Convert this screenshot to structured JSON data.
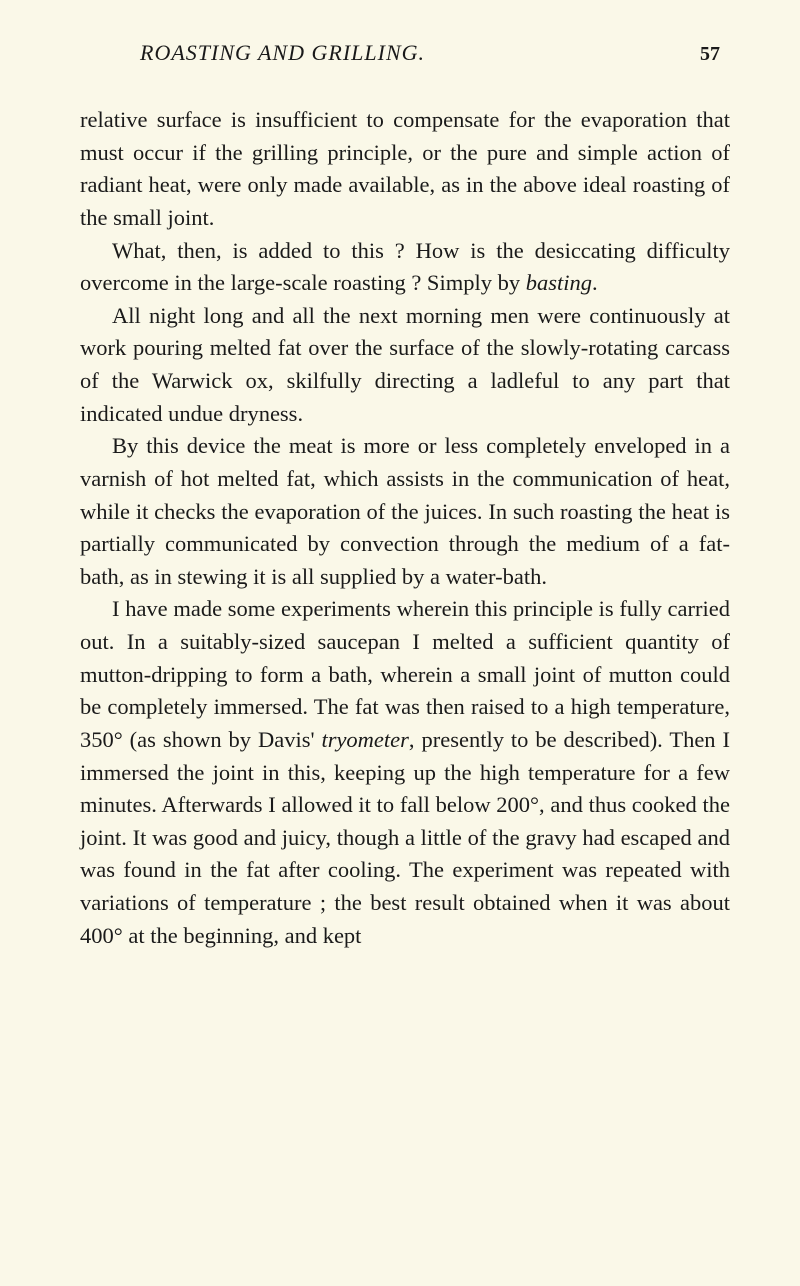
{
  "header": {
    "running_title": "ROASTING AND GRILLING.",
    "page_number": "57"
  },
  "paragraphs": {
    "p1": "relative surface is insufficient to compensate for the evaporation that must occur if the grilling principle, or the pure and simple action of radiant heat, were only made available, as in the above ideal roasting of the small joint.",
    "p2_a": "What, then, is added to this ? How is the desiccating difficulty overcome in the large-scale roasting ? Simply by ",
    "p2_em": "basting",
    "p2_b": ".",
    "p3": "All night long and all the next morning men were continuously at work pouring melted fat over the surface of the slowly-rotating carcass of the Warwick ox, skilfully directing a ladleful to any part that indicated undue dryness.",
    "p4": "By this device the meat is more or less completely enveloped in a varnish of hot melted fat, which assists in the communication of heat, while it checks the evaporation of the juices. In such roasting the heat is partially communicated by convection through the medium of a fat-bath, as in stewing it is all supplied by a water-bath.",
    "p5_a": "I have made some experiments wherein this principle is fully carried out. In a suitably-sized saucepan I melted a sufficient quantity of mutton-dripping to form a bath, wherein a small joint of mutton could be completely immersed. The fat was then raised to a high temperature, 350° (as shown by Davis' ",
    "p5_em": "tryometer",
    "p5_b": ", presently to be described). Then I immersed the joint in this, keeping up the high temperature for a few minutes. Afterwards I allowed it to fall below 200°, and thus cooked the joint. It was good and juicy, though a little of the gravy had escaped and was found in the fat after cooling. The experiment was repeated with variations of temperature ; the best result obtained when it was about 400° at the beginning, and kept"
  }
}
